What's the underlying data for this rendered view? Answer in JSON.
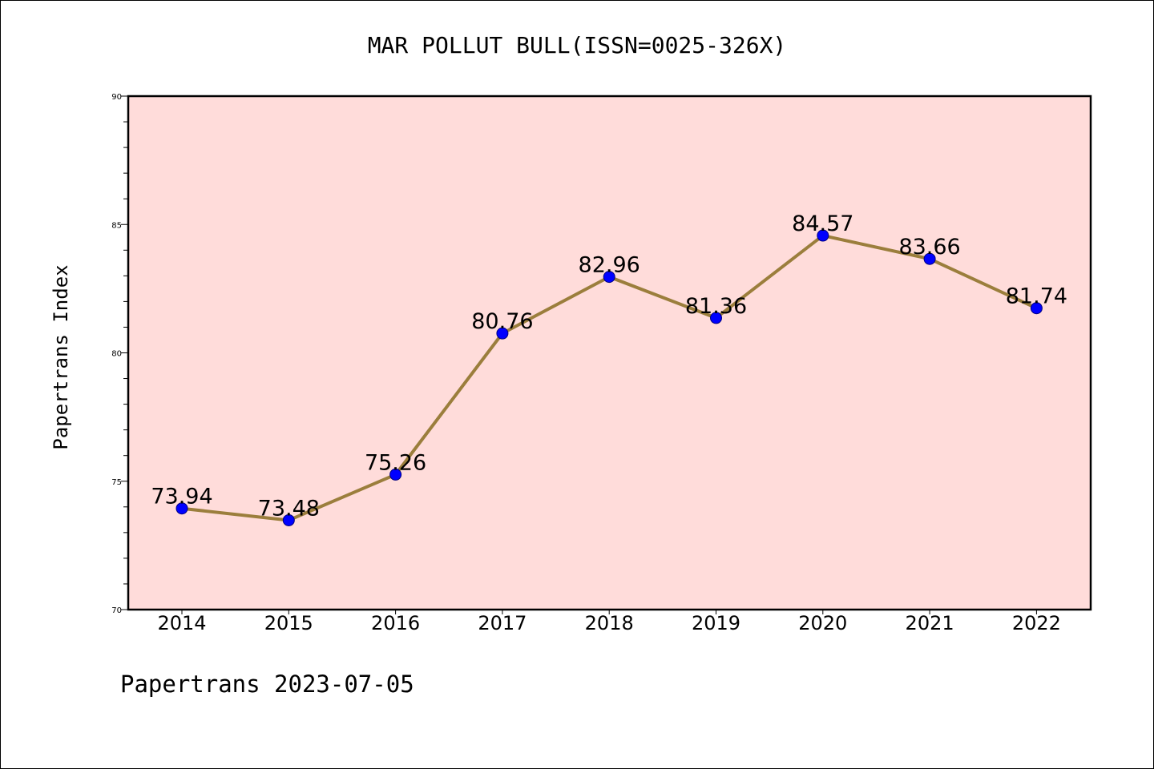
{
  "chart_data": {
    "type": "line",
    "title": "MAR POLLUT BULL(ISSN=0025-326X)",
    "ylabel": "Papertrans Index",
    "xlabel": "",
    "footer": "Papertrans 2023-07-05",
    "categories": [
      "2014",
      "2015",
      "2016",
      "2017",
      "2018",
      "2019",
      "2020",
      "2021",
      "2022"
    ],
    "series": [
      {
        "values": [
          73.94,
          73.48,
          75.26,
          80.76,
          82.96,
          81.36,
          84.57,
          83.66,
          81.74
        ]
      }
    ],
    "data_labels": [
      "73.94",
      "73.48",
      "75.26",
      "80.76",
      "82.96",
      "81.36",
      "84.57",
      "83.66",
      "81.74"
    ],
    "ylim": [
      70,
      90
    ],
    "yticks": [
      70,
      75,
      80,
      85,
      90
    ],
    "ytick_labels": [
      "70",
      "75",
      "80",
      "85",
      "90"
    ],
    "y_minor_step": 1,
    "grid": false,
    "legend": "none",
    "colors": {
      "plot_background": "#FFDCDA",
      "line": "#9B7E3C",
      "marker_fill": "#0000FF",
      "marker_edge": "#000080",
      "axes": "#000000"
    }
  }
}
